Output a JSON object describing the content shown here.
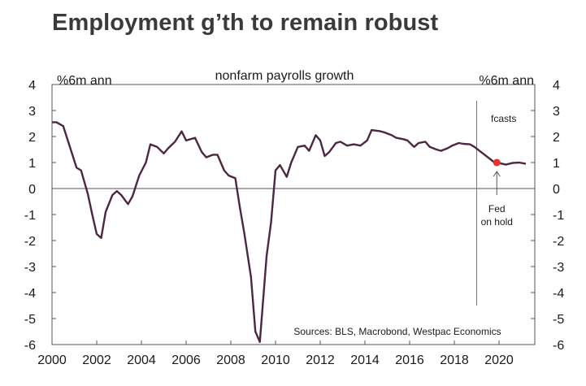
{
  "title": "Employment g’th to remain robust",
  "chart_data": {
    "type": "line",
    "subtitle": "nonfarm payrolls growth",
    "ylabel_left": "%6m ann",
    "ylabel_right": "%6m ann",
    "xlim": [
      2000,
      2021.6
    ],
    "ylim": [
      -6,
      4
    ],
    "x_ticks": [
      2000,
      2002,
      2004,
      2006,
      2008,
      2010,
      2012,
      2014,
      2016,
      2018,
      2020
    ],
    "y_ticks": [
      4,
      3,
      2,
      1,
      0,
      -1,
      -2,
      -3,
      -4,
      -5,
      -6
    ],
    "zero_line": true,
    "grid": false,
    "forecast_start": 2019.0,
    "forecast_label": "fcasts",
    "annotation": {
      "text_lines": [
        "Fed",
        "on hold"
      ],
      "x": 2019.9,
      "y": 1.0,
      "marker_color": "#e8322b"
    },
    "source": "Sources: BLS, Macrobond, Westpac Economics",
    "series": [
      {
        "color": "#4b2840",
        "x": [
          2000.0,
          2000.2,
          2000.5,
          2000.8,
          2001.1,
          2001.3,
          2001.6,
          2001.8,
          2002.0,
          2002.2,
          2002.4,
          2002.7,
          2002.9,
          2003.1,
          2003.4,
          2003.6,
          2003.9,
          2004.2,
          2004.4,
          2004.7,
          2005.0,
          2005.2,
          2005.5,
          2005.8,
          2006.0,
          2006.4,
          2006.7,
          2006.9,
          2007.2,
          2007.4,
          2007.7,
          2007.9,
          2008.2,
          2008.4,
          2008.6,
          2008.9,
          2009.1,
          2009.3,
          2009.6,
          2009.8,
          2010.0,
          2010.2,
          2010.5,
          2010.7,
          2011.0,
          2011.3,
          2011.5,
          2011.8,
          2012.0,
          2012.2,
          2012.4,
          2012.7,
          2012.9,
          2013.2,
          2013.5,
          2013.8,
          2014.1,
          2014.3,
          2014.7,
          2014.9,
          2015.2,
          2015.4,
          2015.7,
          2015.9,
          2016.2,
          2016.4,
          2016.7,
          2016.9,
          2017.2,
          2017.4,
          2017.7,
          2017.9,
          2018.2,
          2018.4,
          2018.7,
          2018.9,
          2019.2,
          2019.5,
          2019.8,
          2020.0,
          2020.3,
          2020.6,
          2020.9,
          2021.2
        ],
        "values": [
          2.55,
          2.55,
          2.4,
          1.6,
          0.8,
          0.7,
          -0.2,
          -1.0,
          -1.75,
          -1.9,
          -0.9,
          -0.25,
          -0.1,
          -0.25,
          -0.6,
          -0.3,
          0.5,
          1.0,
          1.7,
          1.6,
          1.35,
          1.55,
          1.8,
          2.2,
          1.85,
          1.95,
          1.4,
          1.2,
          1.3,
          1.3,
          0.7,
          0.5,
          0.4,
          -0.7,
          -1.7,
          -3.4,
          -5.5,
          -5.9,
          -2.6,
          -1.3,
          0.7,
          0.9,
          0.45,
          1.0,
          1.6,
          1.65,
          1.45,
          2.05,
          1.85,
          1.25,
          1.4,
          1.75,
          1.8,
          1.65,
          1.7,
          1.65,
          1.85,
          2.25,
          2.2,
          2.15,
          2.05,
          1.95,
          1.9,
          1.85,
          1.6,
          1.75,
          1.8,
          1.6,
          1.5,
          1.45,
          1.55,
          1.65,
          1.75,
          1.72,
          1.7,
          1.6,
          1.4,
          1.2,
          1.0,
          0.98,
          0.92,
          0.98,
          1.0,
          0.95
        ]
      }
    ]
  }
}
